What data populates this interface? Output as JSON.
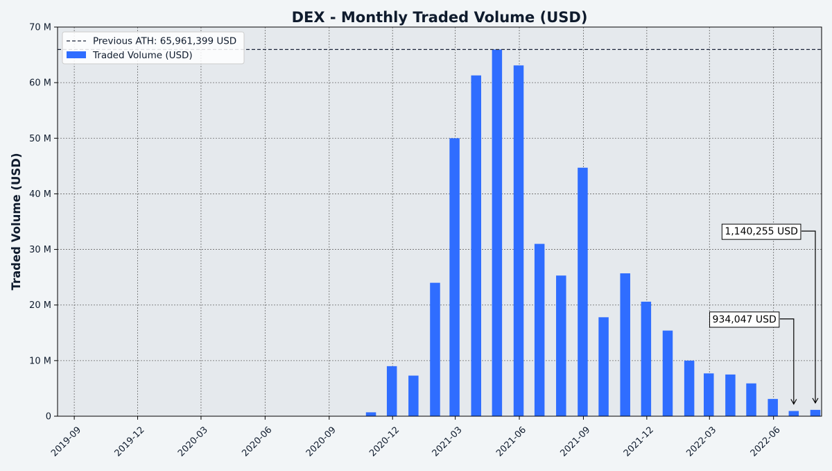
{
  "chart_data": {
    "type": "bar",
    "title": "DEX - Monthly Traded Volume (USD)",
    "xlabel": "",
    "ylabel": "Traded Volume (USD)",
    "ylim": [
      0,
      70000000
    ],
    "xlim": [
      "2019-08-08",
      "2022-08-09"
    ],
    "y_ticks": [
      0,
      10000000,
      20000000,
      30000000,
      40000000,
      50000000,
      60000000,
      70000000
    ],
    "y_tick_labels": [
      "0",
      "10 M",
      "20 M",
      "30 M",
      "40 M",
      "50 M",
      "60 M",
      "70 M"
    ],
    "x_ticks": [
      "2019-09-01",
      "2019-12-01",
      "2020-03-01",
      "2020-06-01",
      "2020-09-01",
      "2020-12-01",
      "2021-03-01",
      "2021-06-01",
      "2021-09-01",
      "2021-12-01",
      "2022-03-01",
      "2022-06-01"
    ],
    "x_tick_labels": [
      "2019-09",
      "2019-12",
      "2020-03",
      "2020-06",
      "2020-09",
      "2020-12",
      "2021-03",
      "2021-06",
      "2021-09",
      "2021-12",
      "2022-03",
      "2022-06"
    ],
    "grid": true,
    "legend_position": "top-left",
    "colors": {
      "bar": "#2f6dff",
      "ath_line": "#1b2238",
      "plot_background": "#e5e9ed",
      "page_background": "#f2f5f7",
      "grid": "#666666",
      "text": "#0f1b2d"
    },
    "series": [
      {
        "name": "Traded Volume (USD)",
        "points": [
          {
            "x": "2020-10-31",
            "y": 700000
          },
          {
            "x": "2020-11-30",
            "y": 9000000
          },
          {
            "x": "2020-12-31",
            "y": 7300000
          },
          {
            "x": "2021-01-31",
            "y": 24000000
          },
          {
            "x": "2021-02-28",
            "y": 50000000
          },
          {
            "x": "2021-03-31",
            "y": 61300000
          },
          {
            "x": "2021-04-30",
            "y": 65961399
          },
          {
            "x": "2021-05-31",
            "y": 63100000
          },
          {
            "x": "2021-06-30",
            "y": 31000000
          },
          {
            "x": "2021-07-31",
            "y": 25300000
          },
          {
            "x": "2021-08-31",
            "y": 44700000
          },
          {
            "x": "2021-09-30",
            "y": 17800000
          },
          {
            "x": "2021-10-31",
            "y": 25700000
          },
          {
            "x": "2021-11-30",
            "y": 20600000
          },
          {
            "x": "2021-12-31",
            "y": 15400000
          },
          {
            "x": "2022-01-31",
            "y": 10000000
          },
          {
            "x": "2022-02-28",
            "y": 7700000
          },
          {
            "x": "2022-03-31",
            "y": 7500000
          },
          {
            "x": "2022-04-30",
            "y": 5900000
          },
          {
            "x": "2022-05-31",
            "y": 3100000
          },
          {
            "x": "2022-06-30",
            "y": 934047
          },
          {
            "x": "2022-07-31",
            "y": 1140255
          }
        ]
      }
    ],
    "reference_line": {
      "name": "Previous ATH: 65,961,399 USD",
      "y": 65961399,
      "style": "dashed"
    },
    "annotations": [
      {
        "text": "934,047 USD",
        "x": "2022-06-30",
        "y": 934047,
        "text_y": 17500000
      },
      {
        "text": "1,140,255 USD",
        "x": "2022-07-31",
        "y": 1140255,
        "text_y": 33300000
      }
    ]
  }
}
